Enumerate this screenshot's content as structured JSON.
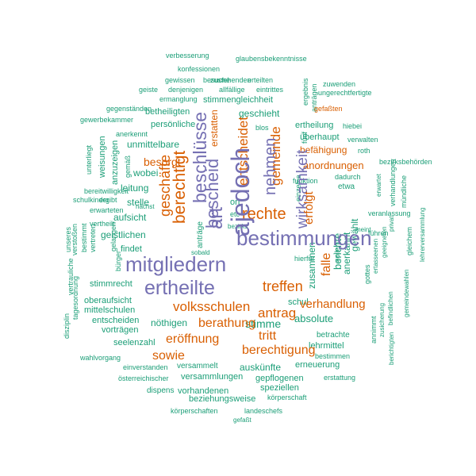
{
  "palette": {
    "teal": "#1b9e77",
    "orange": "#d95f02",
    "purple": "#7570b3"
  },
  "words": [
    "verbesserung",
    "glaubensbekenntnisse",
    "konfessionen",
    "zustehenden",
    "gewissen",
    "besuche",
    "erteilten",
    "geiste",
    "denjenigen",
    "allfällige",
    "eintrittes",
    "ergebnis",
    "zuwenden",
    "ermanglung",
    "anträgen",
    "ungerechtfertigte",
    "gegenständen",
    "stimmengleichheit",
    "gefaßten",
    "betheiligten",
    "geschieht",
    "gewerbekammer",
    "persönliche",
    "blos",
    "ertheilung",
    "hiebei",
    "anerkennt",
    "fünf",
    "überhaupt",
    "verwalten",
    "unmittelbare",
    "befähigung",
    "roth",
    "unterliegt",
    "weisungen",
    "anzuzeigen",
    "gemäß",
    "besorgt",
    "anordnungen",
    "bezirksbehörden",
    "wobei",
    "dadurch",
    "funktion",
    "etwa",
    "leitung",
    "einzelne",
    "bereitwilligkeit",
    "schulkinder",
    "erwarteten",
    "ergibt",
    "stelle",
    "ort",
    "erwartet",
    "veranlassung",
    "nächst",
    "aufsicht",
    "etc",
    "bezirks",
    "meint",
    "führen",
    "vertheilt",
    "verstoßen",
    "bestimmt",
    "vertreten",
    "unseres",
    "gelangen",
    "geistlichen",
    "sobald",
    "findet",
    "hierfür",
    "sollen",
    "gottes",
    "ertasseenen",
    "geeigneten",
    "privat",
    "gleichem",
    "lehrerversammlung",
    "bürger",
    "vertrauliche",
    "stimmrecht",
    "schul",
    "oberaufsicht",
    "gemeindewahlen",
    "tagesordnung",
    "mittelschulen",
    "entscheiden",
    "vorträgen",
    "nöthigen",
    "disziplin",
    "annimmt",
    "zusicherung",
    "befindlichen",
    "berichtigten",
    "erstatten",
    "betrachte",
    "seelenzahl",
    "lehrmittel",
    "bestimmen",
    "wahlvorgang",
    "einverstanden",
    "versammelt",
    "auskünfte",
    "erneuerung",
    "österreichischer",
    "versammlungen",
    "gepflogenen",
    "erstattung",
    "dispens",
    "vorhandenen",
    "speziellen",
    "beziehungsweise",
    "körperschaft",
    "körperschaften",
    "landeschefs",
    "gefaßt",
    "geschäfte",
    "entscheidet",
    "gemeinde",
    "nehmen",
    "wirksamkeit",
    "berechtigt",
    "beschlüsse",
    "bescheid",
    "anträge",
    "erfolgt",
    "zusammen",
    "berichte",
    "anerkannt",
    "gewählt",
    "mündliche",
    "verhandlungen",
    "falle",
    "rechte",
    "antrag",
    "verhandlung",
    "absolute",
    "stimme",
    "tritt",
    "treffen",
    "berathung",
    "volksschulen",
    "eröffnung",
    "berechtigung",
    "sowie",
    "art",
    "ajedoch",
    "bestimmungen",
    "mitgliedern",
    "ertheilte"
  ]
}
